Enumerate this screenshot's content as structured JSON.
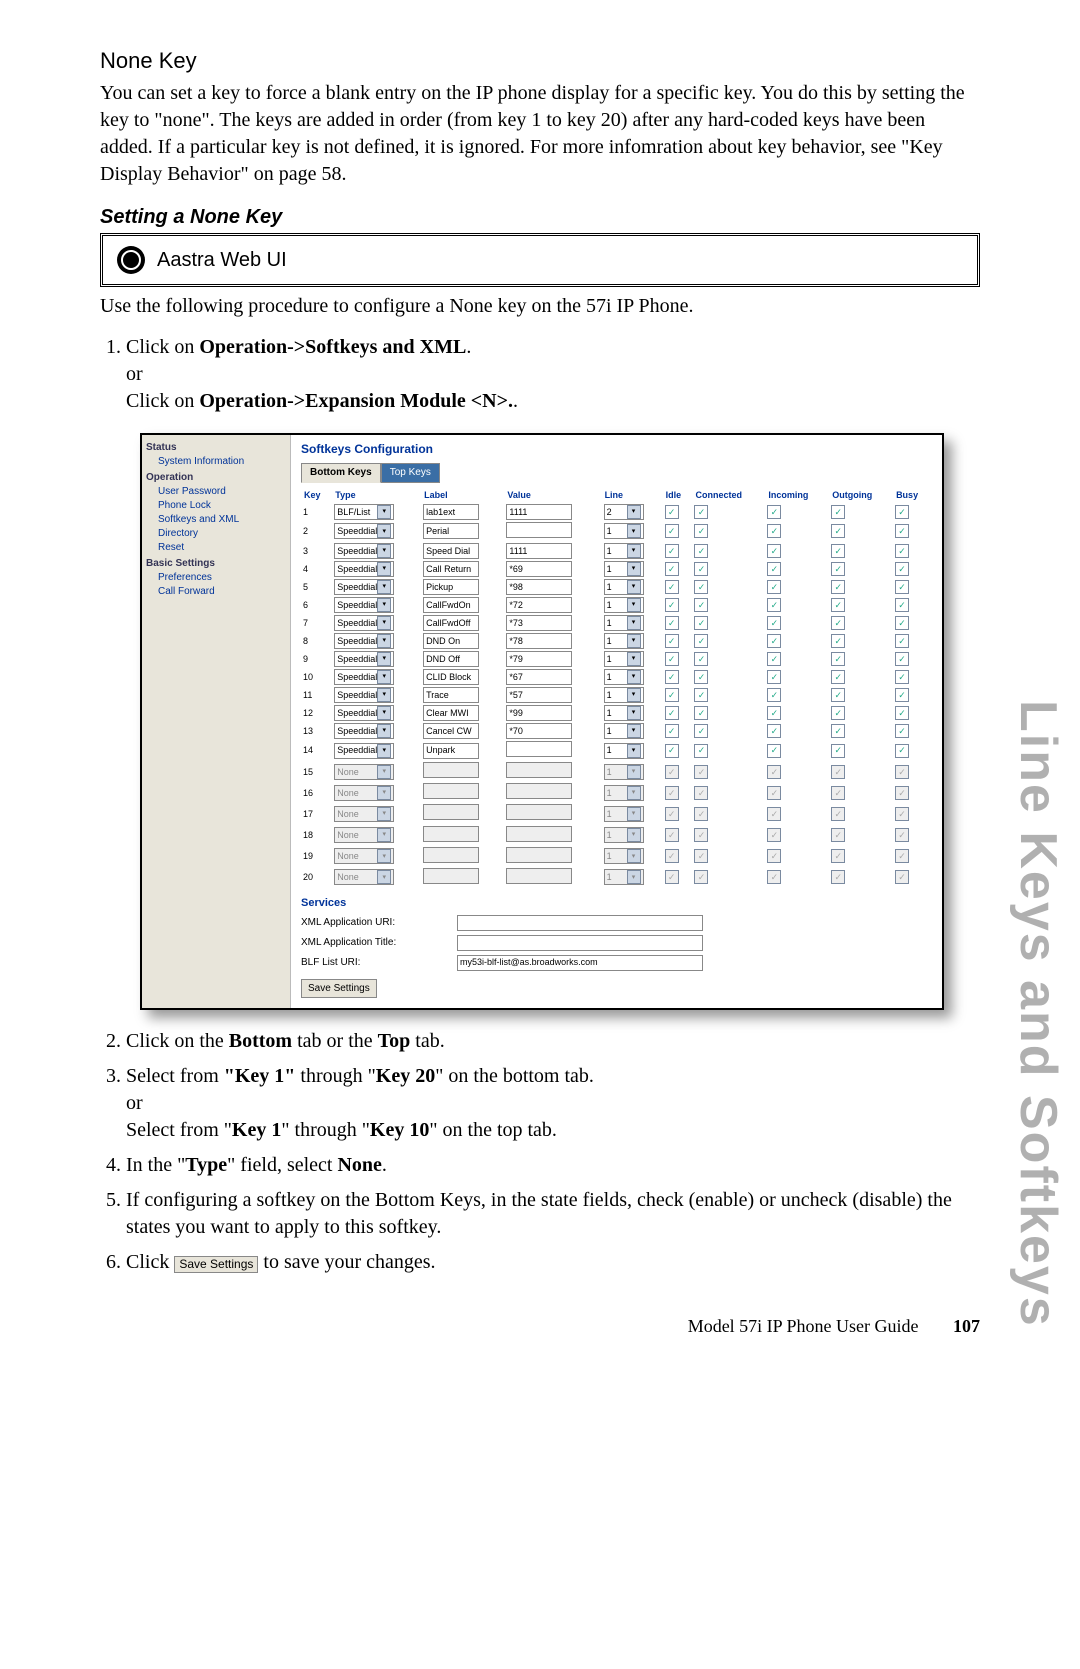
{
  "page": {
    "vertical_heading": "Line Keys and Softkeys",
    "title": "None Key",
    "intro": "You can set a key to force a blank entry on the IP phone display for a specific key. You do this by setting the key to \"none\". The keys are added in order (from key 1 to key 20) after any hard-coded keys have been added. If a particular key is not defined, it is ignored. For more infomration about key behavior, see \"Key Display Behavior\" on page 58.",
    "subheading": "Setting a None Key",
    "webui_label": "Aastra Web UI",
    "webui_intro": "Use the following procedure to configure a None key on the 57i IP Phone.",
    "step1a": "Click on ",
    "step1b": "Operation->Softkeys and XML",
    "step1c": "or",
    "step1d": "Click on ",
    "step1e": "Operation->Expansion Module <N>.",
    "step2a": "Click on the ",
    "step2b": "Bottom",
    "step2c": " tab or the ",
    "step2d": "Top",
    "step2e": " tab.",
    "step3a": "Select from ",
    "step3b": "\"Key 1\"",
    "step3c": " through \"",
    "step3d": "Key 20",
    "step3e": "\" on the bottom tab.",
    "step3f": "or",
    "step3g": "Select from \"",
    "step3h": "Key 1",
    "step3i": "\" through \"",
    "step3j": "Key 10",
    "step3k": "\" on the top tab.",
    "step4a": "In the \"",
    "step4b": "Type",
    "step4c": "\" field, select ",
    "step4d": "None",
    "step4e": ".",
    "step5": "If configuring a softkey on the Bottom Keys, in the state fields, check (enable) or uncheck (disable) the states you want to apply to this softkey.",
    "step6a": "Click ",
    "step6b": "Save Settings",
    "step6c": " to save your changes.",
    "footer_text": "Model 57i IP Phone User Guide",
    "footer_page": "107"
  },
  "nav": {
    "status": "Status",
    "sys_info": "System Information",
    "operation": "Operation",
    "user_pw": "User Password",
    "phone_lock": "Phone Lock",
    "softkeys_xml": "Softkeys and XML",
    "directory": "Directory",
    "reset": "Reset",
    "basic": "Basic Settings",
    "prefs": "Preferences",
    "callfwd": "Call Forward"
  },
  "config": {
    "title": "Softkeys Configuration",
    "tab_bottom": "Bottom Keys",
    "tab_top": "Top Keys",
    "cols": [
      "Key",
      "Type",
      "Label",
      "Value",
      "Line",
      "Idle",
      "Connected",
      "Incoming",
      "Outgoing",
      "Busy"
    ],
    "rows": [
      {
        "k": "1",
        "type": "BLF/List",
        "label": "lab1ext",
        "value": "1111",
        "line": "2",
        "en": true
      },
      {
        "k": "2",
        "type": "Speeddial",
        "label": "Perial",
        "value": "",
        "line": "1",
        "en": true
      },
      {
        "k": "3",
        "type": "Speeddial",
        "label": "Speed Dial",
        "value": "1111",
        "line": "1",
        "en": true
      },
      {
        "k": "4",
        "type": "Speeddial",
        "label": "Call Return",
        "value": "*69",
        "line": "1",
        "en": true
      },
      {
        "k": "5",
        "type": "Speeddial",
        "label": "Pickup",
        "value": "*98",
        "line": "1",
        "en": true
      },
      {
        "k": "6",
        "type": "Speeddial",
        "label": "CallFwdOn",
        "value": "*72",
        "line": "1",
        "en": true
      },
      {
        "k": "7",
        "type": "Speeddial",
        "label": "CallFwdOff",
        "value": "*73",
        "line": "1",
        "en": true
      },
      {
        "k": "8",
        "type": "Speeddial",
        "label": "DND On",
        "value": "*78",
        "line": "1",
        "en": true
      },
      {
        "k": "9",
        "type": "Speeddial",
        "label": "DND Off",
        "value": "*79",
        "line": "1",
        "en": true
      },
      {
        "k": "10",
        "type": "Speeddial",
        "label": "CLID Block",
        "value": "*67",
        "line": "1",
        "en": true
      },
      {
        "k": "11",
        "type": "Speeddial",
        "label": "Trace",
        "value": "*57",
        "line": "1",
        "en": true
      },
      {
        "k": "12",
        "type": "Speeddial",
        "label": "Clear MWI",
        "value": "*99",
        "line": "1",
        "en": true
      },
      {
        "k": "13",
        "type": "Speeddial",
        "label": "Cancel CW",
        "value": "*70",
        "line": "1",
        "en": true
      },
      {
        "k": "14",
        "type": "Speeddial",
        "label": "Unpark",
        "value": "",
        "line": "1",
        "en": true
      },
      {
        "k": "15",
        "type": "None",
        "label": "",
        "value": "",
        "line": "1",
        "en": false
      },
      {
        "k": "16",
        "type": "None",
        "label": "",
        "value": "",
        "line": "1",
        "en": false
      },
      {
        "k": "17",
        "type": "None",
        "label": "",
        "value": "",
        "line": "1",
        "en": false
      },
      {
        "k": "18",
        "type": "None",
        "label": "",
        "value": "",
        "line": "1",
        "en": false
      },
      {
        "k": "19",
        "type": "None",
        "label": "",
        "value": "",
        "line": "1",
        "en": false
      },
      {
        "k": "20",
        "type": "None",
        "label": "",
        "value": "",
        "line": "1",
        "en": false
      }
    ],
    "services": "Services",
    "xml_uri_label": "XML Application URI:",
    "xml_title_label": "XML Application Title:",
    "blf_label": "BLF List URI:",
    "blf_value": "my53i-blf-list@as.broadworks.com",
    "save": "Save Settings"
  }
}
